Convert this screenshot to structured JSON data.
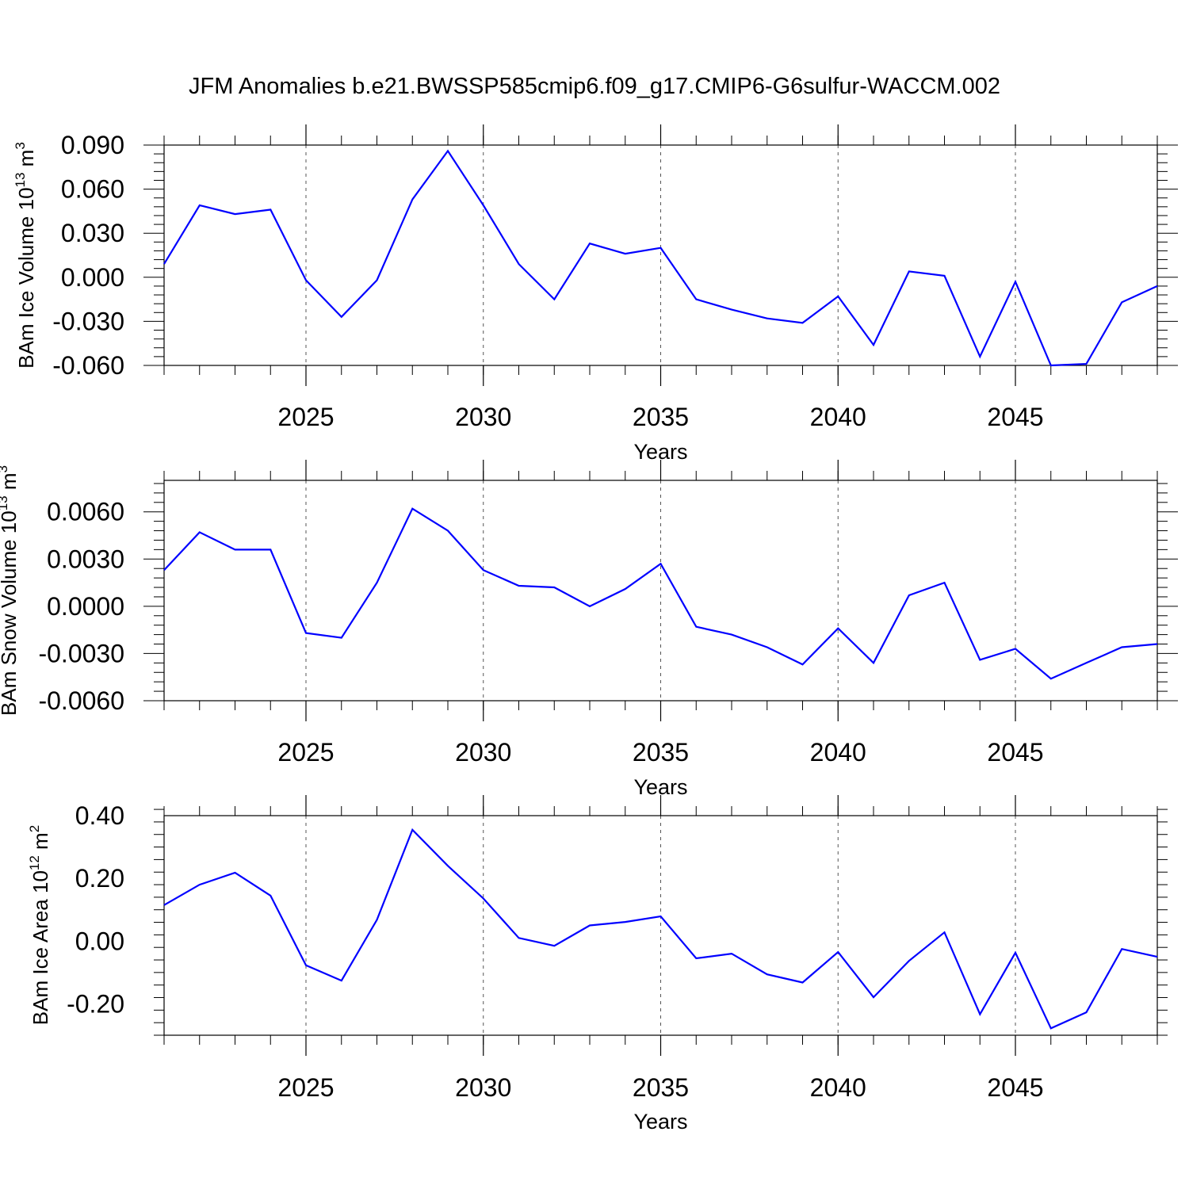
{
  "figure": {
    "title": "JFM Anomalies b.e21.BWSSP585cmip6.f09_g17.CMIP6-G6sulfur-WACCM.002",
    "line_color": "#0000ff"
  },
  "chart_data": [
    {
      "type": "line",
      "xlabel": "Years",
      "ylabel": {
        "main": "BAm Ice Volume 10",
        "exp": "13",
        "unit": " m",
        "unit_exp": "3"
      },
      "xlim": [
        2021,
        2049
      ],
      "ylim": [
        -0.06,
        0.09
      ],
      "x_ticks": [
        2025,
        2030,
        2035,
        2040,
        2045
      ],
      "x_tick_labels": [
        "2025",
        "2030",
        "2035",
        "2040",
        "2045"
      ],
      "y_ticks": [
        -0.06,
        -0.03,
        0.0,
        0.03,
        0.06,
        0.09
      ],
      "y_tick_labels": [
        "-0.060",
        "-0.030",
        "0.000",
        "0.030",
        "0.060",
        "0.090"
      ],
      "grid": "vertical dashed at major x ticks",
      "x": [
        2021,
        2022,
        2023,
        2024,
        2025,
        2026,
        2027,
        2028,
        2029,
        2030,
        2031,
        2032,
        2033,
        2034,
        2035,
        2036,
        2037,
        2038,
        2039,
        2040,
        2041,
        2042,
        2043,
        2044,
        2045,
        2046,
        2047,
        2048,
        2049
      ],
      "values": [
        0.009,
        0.049,
        0.043,
        0.046,
        -0.002,
        -0.027,
        -0.002,
        0.053,
        0.086,
        0.049,
        0.009,
        -0.015,
        0.023,
        0.016,
        0.02,
        -0.015,
        -0.022,
        -0.028,
        -0.031,
        -0.013,
        -0.046,
        0.004,
        0.001,
        -0.054,
        -0.003,
        -0.06,
        -0.059,
        -0.017,
        -0.006
      ]
    },
    {
      "type": "line",
      "xlabel": "Years",
      "ylabel": {
        "main": "BAm Snow Volume 10",
        "exp": "13",
        "unit": " m",
        "unit_exp": "3"
      },
      "xlim": [
        2021,
        2049
      ],
      "ylim": [
        -0.006,
        0.008
      ],
      "x_ticks": [
        2025,
        2030,
        2035,
        2040,
        2045
      ],
      "x_tick_labels": [
        "2025",
        "2030",
        "2035",
        "2040",
        "2045"
      ],
      "y_ticks": [
        -0.006,
        -0.003,
        0.0,
        0.003,
        0.006
      ],
      "y_tick_labels": [
        "-0.0060",
        "-0.0030",
        "0.0000",
        "0.0030",
        "0.0060"
      ],
      "grid": "vertical dashed at major x ticks",
      "x": [
        2021,
        2022,
        2023,
        2024,
        2025,
        2026,
        2027,
        2028,
        2029,
        2030,
        2031,
        2032,
        2033,
        2034,
        2035,
        2036,
        2037,
        2038,
        2039,
        2040,
        2041,
        2042,
        2043,
        2044,
        2045,
        2046,
        2047,
        2048,
        2049
      ],
      "values": [
        0.0023,
        0.0047,
        0.0036,
        0.0036,
        -0.0017,
        -0.002,
        0.0015,
        0.0062,
        0.0048,
        0.0023,
        0.0013,
        0.0012,
        0.0,
        0.0011,
        0.0027,
        -0.0013,
        -0.0018,
        -0.0026,
        -0.0037,
        -0.0014,
        -0.0036,
        0.0007,
        0.0015,
        -0.0034,
        -0.0027,
        -0.0046,
        -0.0036,
        -0.0026,
        -0.0024
      ]
    },
    {
      "type": "line",
      "xlabel": "Years",
      "ylabel": {
        "main": "BAm Ice Area 10",
        "exp": "12",
        "unit": " m",
        "unit_exp": "2"
      },
      "xlim": [
        2021,
        2049
      ],
      "ylim": [
        -0.3,
        0.4
      ],
      "x_ticks": [
        2025,
        2030,
        2035,
        2040,
        2045
      ],
      "x_tick_labels": [
        "2025",
        "2030",
        "2035",
        "2040",
        "2045"
      ],
      "y_ticks": [
        -0.2,
        0.0,
        0.2,
        0.4
      ],
      "y_tick_labels": [
        "-0.20",
        "0.00",
        "0.20",
        "0.40"
      ],
      "grid": "vertical dashed at major x ticks",
      "x": [
        2021,
        2022,
        2023,
        2024,
        2025,
        2026,
        2027,
        2028,
        2029,
        2030,
        2031,
        2032,
        2033,
        2034,
        2035,
        2036,
        2037,
        2038,
        2039,
        2040,
        2041,
        2042,
        2043,
        2044,
        2045,
        2046,
        2047,
        2048,
        2049
      ],
      "values": [
        0.115,
        0.18,
        0.218,
        0.145,
        -0.077,
        -0.126,
        0.068,
        0.355,
        0.24,
        0.136,
        0.01,
        -0.015,
        0.05,
        0.061,
        0.079,
        -0.055,
        -0.04,
        -0.106,
        -0.132,
        -0.035,
        -0.179,
        -0.063,
        0.028,
        -0.233,
        -0.037,
        -0.278,
        -0.227,
        -0.025,
        -0.05
      ]
    }
  ]
}
